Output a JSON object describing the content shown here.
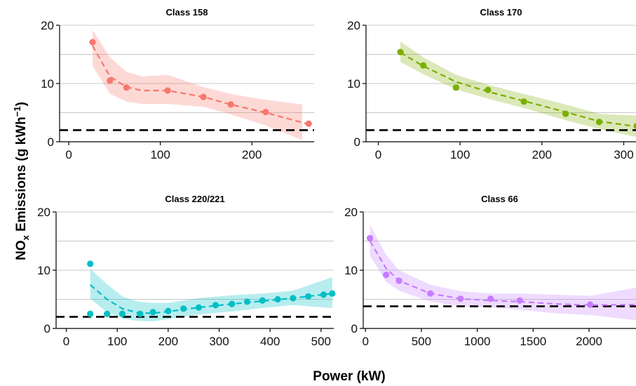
{
  "figure": {
    "ylabel": "NO",
    "ylabel_sub": "x",
    "ylabel_rest": " Emissions (g kWh",
    "ylabel_sup": "−1",
    "ylabel_close": ")",
    "xlabel": "Power (kW)",
    "limit_line_style": "black dashed"
  },
  "chart_data": [
    {
      "type": "scatter",
      "title": "Class 158",
      "color": "#F8766D",
      "xlim": [
        -10,
        268
      ],
      "ylim": [
        0,
        20
      ],
      "xticks": [
        0,
        100,
        200
      ],
      "yticks": [
        0,
        10,
        20
      ],
      "grid": true,
      "points": [
        [
          26,
          17.1
        ],
        [
          45,
          10.5
        ],
        [
          63,
          9.3
        ],
        [
          108,
          8.8
        ],
        [
          147,
          7.7
        ],
        [
          177,
          6.4
        ],
        [
          215,
          5.1
        ],
        [
          262,
          3.1
        ]
      ],
      "fit": [
        [
          26,
          16.5
        ],
        [
          45,
          11.2
        ],
        [
          63,
          9.4
        ],
        [
          80,
          8.8
        ],
        [
          108,
          8.8
        ],
        [
          147,
          7.7
        ],
        [
          177,
          6.4
        ],
        [
          215,
          5.0
        ],
        [
          262,
          3.0
        ]
      ],
      "band_upper": [
        [
          26,
          19.2
        ],
        [
          45,
          14.5
        ],
        [
          63,
          12.0
        ],
        [
          80,
          11.2
        ],
        [
          108,
          11.5
        ],
        [
          147,
          9.4
        ],
        [
          177,
          8.2
        ],
        [
          215,
          7.2
        ],
        [
          255,
          6.4
        ]
      ],
      "band_lower": [
        [
          26,
          13.0
        ],
        [
          45,
          8.2
        ],
        [
          63,
          6.9
        ],
        [
          80,
          6.5
        ],
        [
          108,
          6.5
        ],
        [
          147,
          6.0
        ],
        [
          177,
          4.7
        ],
        [
          215,
          2.8
        ],
        [
          255,
          0.3
        ]
      ],
      "reference_line": 2.0
    },
    {
      "type": "scatter",
      "title": "Class 170",
      "color": "#7CAE00",
      "xlim": [
        -15,
        315
      ],
      "ylim": [
        0,
        20
      ],
      "xticks": [
        0,
        100,
        200,
        300
      ],
      "yticks": [
        0,
        10,
        20
      ],
      "grid": true,
      "points": [
        [
          27,
          15.4
        ],
        [
          55,
          13.1
        ],
        [
          95,
          9.3
        ],
        [
          134,
          8.9
        ],
        [
          178,
          6.9
        ],
        [
          229,
          4.8
        ],
        [
          270,
          3.4
        ],
        [
          316,
          2.7
        ]
      ],
      "fit": [
        [
          27,
          15.3
        ],
        [
          55,
          13.0
        ],
        [
          95,
          10.3
        ],
        [
          134,
          8.6
        ],
        [
          178,
          7.0
        ],
        [
          229,
          5.1
        ],
        [
          270,
          3.5
        ],
        [
          316,
          2.6
        ]
      ],
      "band_upper": [
        [
          27,
          17.2
        ],
        [
          55,
          14.5
        ],
        [
          95,
          11.5
        ],
        [
          134,
          9.8
        ],
        [
          178,
          8.2
        ],
        [
          229,
          6.4
        ],
        [
          270,
          4.8
        ],
        [
          316,
          4.5
        ]
      ],
      "band_lower": [
        [
          27,
          13.7
        ],
        [
          55,
          11.6
        ],
        [
          95,
          9.0
        ],
        [
          134,
          7.4
        ],
        [
          178,
          5.8
        ],
        [
          229,
          3.7
        ],
        [
          270,
          2.2
        ],
        [
          316,
          0.8
        ]
      ],
      "reference_line": 2.0
    },
    {
      "type": "scatter",
      "title": "Class 220/221",
      "color": "#00BFC4",
      "xlim": [
        -20,
        525
      ],
      "ylim": [
        0,
        20
      ],
      "xticks": [
        0,
        100,
        200,
        300,
        400,
        500
      ],
      "yticks": [
        0,
        10,
        20
      ],
      "grid": true,
      "points": [
        [
          47,
          11.1
        ],
        [
          47,
          2.5
        ],
        [
          80,
          2.5
        ],
        [
          110,
          2.5
        ],
        [
          145,
          2.5
        ],
        [
          170,
          2.8
        ],
        [
          200,
          3.0
        ],
        [
          230,
          3.4
        ],
        [
          260,
          3.6
        ],
        [
          293,
          4.0
        ],
        [
          325,
          4.2
        ],
        [
          355,
          4.6
        ],
        [
          385,
          4.8
        ],
        [
          415,
          5.0
        ],
        [
          445,
          5.2
        ],
        [
          475,
          5.5
        ],
        [
          505,
          5.8
        ],
        [
          522,
          6.0
        ]
      ],
      "fit": [
        [
          47,
          7.5
        ],
        [
          80,
          5.0
        ],
        [
          110,
          3.4
        ],
        [
          140,
          2.7
        ],
        [
          170,
          2.6
        ],
        [
          200,
          2.9
        ],
        [
          260,
          3.6
        ],
        [
          325,
          4.2
        ],
        [
          385,
          4.7
        ],
        [
          445,
          5.2
        ],
        [
          522,
          6.0
        ]
      ],
      "band_upper": [
        [
          47,
          10.2
        ],
        [
          80,
          7.6
        ],
        [
          110,
          5.5
        ],
        [
          140,
          4.6
        ],
        [
          170,
          4.4
        ],
        [
          200,
          4.4
        ],
        [
          260,
          5.2
        ],
        [
          325,
          5.7
        ],
        [
          385,
          6.0
        ],
        [
          445,
          6.5
        ],
        [
          522,
          8.8
        ]
      ],
      "band_lower": [
        [
          47,
          5.1
        ],
        [
          80,
          2.8
        ],
        [
          110,
          1.7
        ],
        [
          140,
          1.3
        ],
        [
          170,
          1.2
        ],
        [
          200,
          1.6
        ],
        [
          260,
          2.4
        ],
        [
          325,
          2.9
        ],
        [
          385,
          3.5
        ],
        [
          445,
          4.0
        ],
        [
          522,
          3.5
        ]
      ],
      "reference_line": 2.0
    },
    {
      "type": "scatter",
      "title": "Class 66",
      "color": "#C77CFF",
      "xlim": [
        -20,
        2420
      ],
      "ylim": [
        0,
        20
      ],
      "xticks": [
        0,
        500,
        1000,
        1500,
        2000
      ],
      "yticks": [
        0,
        10,
        20
      ],
      "grid": true,
      "points": [
        [
          40,
          15.5
        ],
        [
          185,
          9.2
        ],
        [
          300,
          8.2
        ],
        [
          580,
          6.0
        ],
        [
          850,
          5.1
        ],
        [
          1120,
          5.1
        ],
        [
          1380,
          4.8
        ],
        [
          2010,
          4.1
        ]
      ],
      "fit": [
        [
          40,
          15.0
        ],
        [
          185,
          10.3
        ],
        [
          300,
          8.2
        ],
        [
          580,
          6.0
        ],
        [
          850,
          5.1
        ],
        [
          1120,
          4.8
        ],
        [
          1380,
          4.6
        ],
        [
          1700,
          4.2
        ],
        [
          2010,
          4.0
        ],
        [
          2420,
          4.1
        ]
      ],
      "band_upper": [
        [
          40,
          17.8
        ],
        [
          185,
          12.6
        ],
        [
          300,
          10.0
        ],
        [
          580,
          7.5
        ],
        [
          850,
          6.4
        ],
        [
          1120,
          6.0
        ],
        [
          1380,
          6.0
        ],
        [
          1700,
          5.8
        ],
        [
          2010,
          5.6
        ],
        [
          2420,
          7.0
        ]
      ],
      "band_lower": [
        [
          40,
          12.5
        ],
        [
          185,
          8.0
        ],
        [
          300,
          6.5
        ],
        [
          580,
          4.6
        ],
        [
          850,
          3.8
        ],
        [
          1120,
          3.6
        ],
        [
          1380,
          3.2
        ],
        [
          1700,
          2.6
        ],
        [
          2010,
          2.3
        ],
        [
          2420,
          1.4
        ]
      ],
      "reference_line": 3.8
    }
  ]
}
